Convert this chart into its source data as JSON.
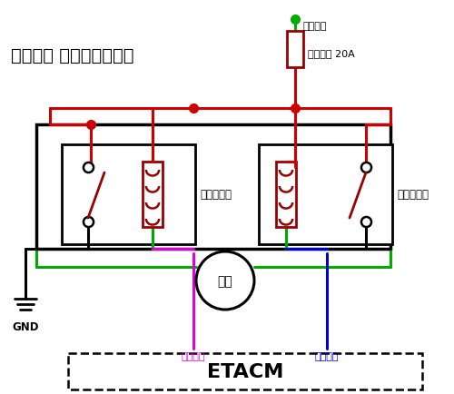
{
  "title": "北京现代 门锁控制原理图",
  "relay_left_label": "开锁继电器",
  "relay_right_label": "闭锁继电器",
  "motor_label": "电机",
  "gnd_label": "GND",
  "fuse_label": "门锁保险 20A",
  "ignition_label": "点火开关",
  "etacm_label": "ETACM",
  "open_ctrl_label": "开锁控制",
  "close_ctrl_label": "闭锁控制",
  "colors": {
    "red": "#cc0000",
    "green": "#00aa00",
    "blue": "#0000cc",
    "magenta": "#dd00dd",
    "black": "#000000",
    "dark_red": "#990000"
  },
  "bg_color": "#ffffff"
}
